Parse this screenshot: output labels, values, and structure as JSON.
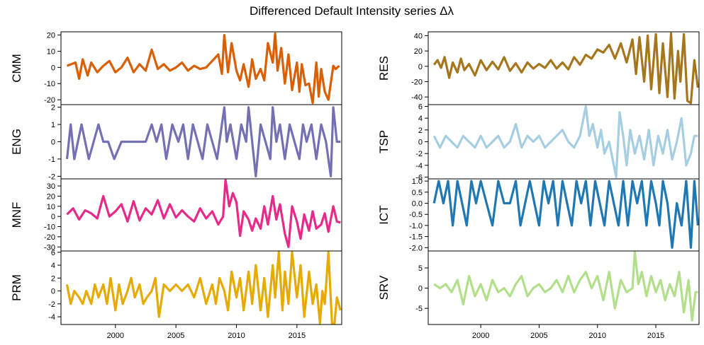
{
  "chart_data": {
    "type": "line",
    "title": "Differenced Default Intensity series Δλ",
    "x_ticks": [
      2000,
      2005,
      2010,
      2015
    ],
    "xlim": [
      1995.5,
      2018.7
    ],
    "panels": [
      {
        "name": "CMM",
        "color": "#d95f02",
        "column": "left",
        "ylim": [
          -23,
          22
        ],
        "yticks": [
          -20,
          -10,
          0,
          10,
          20
        ],
        "x": [
          1996.0,
          1996.7,
          1997.0,
          1997.3,
          1997.7,
          1998.0,
          1998.5,
          1999.0,
          1999.5,
          2000.0,
          2000.5,
          2001.0,
          2001.5,
          2002.0,
          2002.5,
          2003.0,
          2003.5,
          2004.0,
          2004.5,
          2005.0,
          2005.5,
          2006.0,
          2006.5,
          2007.0,
          2007.5,
          2008.0,
          2008.5,
          2008.8,
          2009.0,
          2009.3,
          2009.6,
          2010.0,
          2010.3,
          2010.6,
          2011.0,
          2011.3,
          2011.6,
          2012.0,
          2012.3,
          2012.6,
          2013.0,
          2013.2,
          2013.4,
          2013.7,
          2014.0,
          2014.3,
          2014.6,
          2015.0,
          2015.2,
          2015.4,
          2015.7,
          2016.0,
          2016.3,
          2016.6,
          2016.8,
          2017.0,
          2017.3,
          2017.6,
          2018.0,
          2018.2,
          2018.5
        ],
        "y": [
          1,
          3,
          -7,
          5,
          -5,
          3,
          -3,
          1,
          4,
          -3,
          0,
          6,
          -3,
          2,
          -2,
          11,
          -1,
          2,
          -2,
          0,
          3,
          -2,
          1,
          -1,
          0,
          4,
          8,
          -4,
          20,
          -3,
          15,
          -2,
          -8,
          2,
          -12,
          5,
          -7,
          -1,
          -8,
          15,
          3,
          21,
          -2,
          12,
          -10,
          8,
          -14,
          3,
          -15,
          2,
          -11,
          -10,
          -22,
          3,
          -18,
          -1,
          -15,
          -20,
          1,
          -1,
          1
        ]
      },
      {
        "name": "ENG",
        "color": "#7570b3",
        "column": "left",
        "ylim": [
          -2.15,
          2.15
        ],
        "yticks": [
          -2,
          -1,
          0,
          1,
          2
        ],
        "x": [
          1996.0,
          1996.3,
          1996.6,
          1996.9,
          1997.2,
          1997.5,
          1997.8,
          1998.2,
          1998.6,
          1999.0,
          1999.4,
          1999.9,
          2000.5,
          2001.0,
          2001.5,
          2002.0,
          2002.5,
          2003.0,
          2003.4,
          2003.8,
          2004.2,
          2004.7,
          2005.2,
          2005.6,
          2006.0,
          2006.4,
          2006.8,
          2007.2,
          2007.6,
          2008.0,
          2008.4,
          2008.8,
          2009.0,
          2009.2,
          2009.5,
          2010.0,
          2010.4,
          2010.8,
          2011.0,
          2011.3,
          2011.6,
          2012.0,
          2012.4,
          2012.8,
          2013.0,
          2013.3,
          2013.6,
          2014.0,
          2014.4,
          2014.8,
          2015.2,
          2015.5,
          2015.8,
          2016.2,
          2016.6,
          2017.0,
          2017.4,
          2017.8,
          2018.0,
          2018.3,
          2018.6
        ],
        "y": [
          -1,
          1,
          -1,
          0,
          1,
          0,
          -1,
          0,
          1,
          0,
          0,
          -1,
          0,
          0,
          0,
          0,
          0,
          1,
          0,
          1,
          -1,
          1,
          0,
          1,
          -1,
          1,
          0,
          -1,
          1,
          0,
          -1,
          1,
          2,
          0,
          1,
          -1,
          1,
          0,
          2,
          0,
          -2,
          1,
          0,
          -1,
          2,
          0,
          1,
          -1,
          1,
          0,
          -1,
          1,
          0,
          1,
          -1,
          1,
          0,
          -2,
          2,
          0,
          0
        ]
      },
      {
        "name": "MNF",
        "color": "#e7298a",
        "column": "left",
        "ylim": [
          -34,
          37
        ],
        "yticks": [
          -30,
          -20,
          -10,
          0,
          10,
          20,
          30
        ],
        "x": [
          1996.0,
          1996.5,
          1997.0,
          1997.5,
          1998.0,
          1998.5,
          1999.0,
          1999.5,
          2000.0,
          2000.5,
          2001.0,
          2001.5,
          2002.0,
          2002.5,
          2003.0,
          2003.5,
          2004.0,
          2004.5,
          2005.0,
          2005.5,
          2006.0,
          2006.5,
          2007.0,
          2007.5,
          2008.0,
          2008.5,
          2008.9,
          2009.1,
          2009.4,
          2009.7,
          2010.0,
          2010.3,
          2010.6,
          2011.0,
          2011.3,
          2011.6,
          2012.0,
          2012.3,
          2012.6,
          2013.0,
          2013.3,
          2013.6,
          2014.0,
          2014.3,
          2014.6,
          2015.0,
          2015.3,
          2015.6,
          2016.0,
          2016.3,
          2016.6,
          2017.0,
          2017.3,
          2017.6,
          2018.0,
          2018.3,
          2018.6
        ],
        "y": [
          2,
          8,
          -3,
          6,
          3,
          -2,
          20,
          0,
          5,
          12,
          -5,
          15,
          -4,
          8,
          2,
          16,
          -2,
          12,
          -1,
          6,
          0,
          -5,
          8,
          -2,
          5,
          -8,
          0,
          36,
          10,
          23,
          14,
          -19,
          5,
          -3,
          -14,
          -2,
          -12,
          10,
          -8,
          20,
          -3,
          12,
          -17,
          -30,
          10,
          -5,
          -22,
          2,
          -14,
          5,
          -12,
          -8,
          3,
          -15,
          10,
          -5,
          -6
        ]
      },
      {
        "name": "PRM",
        "color": "#e6ab02",
        "column": "left",
        "ylim": [
          -5.2,
          6.2
        ],
        "yticks": [
          -4,
          -2,
          0,
          2,
          4,
          6
        ],
        "x": [
          1996.0,
          1996.3,
          1996.6,
          1997.0,
          1997.3,
          1997.6,
          1998.0,
          1998.3,
          1998.6,
          1999.0,
          1999.3,
          1999.6,
          2000.0,
          2000.3,
          2000.6,
          2001.0,
          2001.3,
          2001.6,
          2002.0,
          2002.3,
          2002.6,
          2003.0,
          2003.3,
          2003.6,
          2004.0,
          2004.5,
          2005.0,
          2005.5,
          2006.0,
          2006.5,
          2007.0,
          2007.5,
          2008.0,
          2008.3,
          2008.6,
          2009.0,
          2009.3,
          2009.6,
          2010.0,
          2010.3,
          2010.6,
          2011.0,
          2011.3,
          2011.6,
          2012.0,
          2012.3,
          2012.6,
          2013.0,
          2013.2,
          2013.5,
          2013.8,
          2014.0,
          2014.3,
          2014.6,
          2015.0,
          2015.3,
          2015.6,
          2016.0,
          2016.3,
          2016.6,
          2016.9,
          2017.1,
          2017.3,
          2017.6,
          2017.9,
          2018.1,
          2018.3,
          2018.6
        ],
        "y": [
          1,
          -2,
          0,
          -1,
          -2,
          0,
          -2,
          1,
          -1,
          1,
          -2,
          2,
          -3,
          1,
          -2,
          0,
          2,
          -1,
          1,
          -2,
          -1,
          0,
          2,
          -4,
          1,
          0,
          1,
          0,
          1,
          -1,
          2,
          -2,
          1,
          -2,
          2,
          0,
          -3,
          3,
          -1,
          2,
          -3,
          3,
          -2,
          4,
          -3,
          2,
          -4,
          4,
          -1,
          6,
          -3,
          3,
          -2,
          6,
          -1,
          4,
          -4,
          3,
          -2,
          1,
          -5,
          0,
          -2,
          6,
          -5,
          -5,
          -1,
          -3
        ]
      },
      {
        "name": "RES",
        "color": "#a6761d",
        "column": "right",
        "ylim": [
          -50,
          45
        ],
        "yticks": [
          -40,
          -20,
          0,
          20,
          40
        ],
        "x": [
          1996.0,
          1996.3,
          1996.6,
          1996.9,
          1997.3,
          1997.6,
          1998.0,
          1998.3,
          1998.6,
          1999.0,
          1999.5,
          2000.0,
          2000.5,
          2001.0,
          2001.5,
          2002.0,
          2002.5,
          2003.0,
          2003.5,
          2004.0,
          2004.5,
          2005.0,
          2005.5,
          2006.0,
          2006.5,
          2007.0,
          2007.5,
          2008.0,
          2008.5,
          2009.0,
          2009.5,
          2010.0,
          2010.5,
          2011.0,
          2011.5,
          2012.0,
          2012.5,
          2013.0,
          2013.3,
          2013.6,
          2014.0,
          2014.3,
          2014.6,
          2015.0,
          2015.3,
          2015.6,
          2016.0,
          2016.3,
          2016.6,
          2016.9,
          2017.1,
          2017.4,
          2017.7,
          2018.0,
          2018.3,
          2018.6
        ],
        "y": [
          2,
          8,
          -2,
          12,
          -15,
          5,
          -8,
          10,
          -5,
          3,
          -12,
          8,
          -5,
          6,
          -4,
          12,
          -6,
          4,
          -8,
          5,
          -3,
          3,
          -2,
          8,
          -3,
          5,
          -4,
          12,
          2,
          15,
          10,
          22,
          18,
          28,
          10,
          30,
          5,
          35,
          -10,
          38,
          -20,
          40,
          -30,
          42,
          -35,
          30,
          -40,
          43,
          -42,
          20,
          -20,
          42,
          -45,
          -48,
          8,
          -28
        ]
      },
      {
        "name": "TSP",
        "color": "#a6cee3",
        "column": "right",
        "ylim": [
          -6.3,
          6.3
        ],
        "yticks": [
          -6,
          -4,
          -2,
          0,
          2,
          4,
          6
        ],
        "x": [
          1996.0,
          1996.5,
          1997.0,
          1997.5,
          1998.0,
          1998.5,
          1999.0,
          1999.5,
          2000.0,
          2000.5,
          2001.0,
          2001.5,
          2002.0,
          2002.5,
          2003.0,
          2003.5,
          2004.0,
          2004.5,
          2005.0,
          2005.5,
          2006.0,
          2006.5,
          2007.0,
          2007.5,
          2008.0,
          2008.5,
          2009.0,
          2009.3,
          2009.6,
          2010.0,
          2010.3,
          2010.6,
          2011.0,
          2011.3,
          2011.6,
          2011.9,
          2012.2,
          2012.5,
          2012.8,
          2013.2,
          2013.6,
          2014.0,
          2014.4,
          2014.8,
          2015.2,
          2015.6,
          2016.0,
          2016.4,
          2016.8,
          2017.2,
          2017.6,
          2018.0,
          2018.3,
          2018.6
        ],
        "y": [
          1,
          -1,
          1,
          0,
          -1,
          1,
          0,
          -1,
          1,
          -1,
          0,
          1,
          -1,
          0,
          3,
          -1,
          1,
          0,
          1,
          -1,
          0,
          1,
          2,
          0,
          -1,
          1,
          6,
          1,
          3,
          -1,
          2,
          -2,
          0,
          -3,
          -6,
          5,
          1,
          -4,
          2,
          -2,
          1,
          -3,
          2,
          -4,
          1,
          -2,
          2,
          -3,
          0,
          4,
          -4,
          -2,
          1,
          1
        ]
      },
      {
        "name": "ICT",
        "color": "#1f78b4",
        "column": "right",
        "ylim": [
          -2.15,
          1.1
        ],
        "yticks": [
          -2.0,
          -1.5,
          -1.0,
          -0.5,
          0.0,
          0.5,
          1.0
        ],
        "x": [
          1996.0,
          1996.4,
          1996.8,
          1997.2,
          1997.6,
          1998.0,
          1998.4,
          1998.8,
          1999.2,
          1999.6,
          2000.0,
          2000.5,
          2001.0,
          2001.5,
          2002.0,
          2002.5,
          2003.0,
          2003.4,
          2003.8,
          2004.2,
          2004.6,
          2005.0,
          2005.4,
          2005.8,
          2006.2,
          2006.6,
          2007.0,
          2007.4,
          2007.8,
          2008.2,
          2008.6,
          2009.0,
          2009.4,
          2009.8,
          2010.2,
          2010.6,
          2011.0,
          2011.4,
          2011.8,
          2012.2,
          2012.6,
          2013.0,
          2013.4,
          2013.8,
          2014.2,
          2014.6,
          2015.0,
          2015.3,
          2015.6,
          2016.0,
          2016.4,
          2016.8,
          2017.2,
          2017.6,
          2018.0,
          2018.3,
          2018.6
        ],
        "y": [
          0,
          1,
          0,
          1,
          -1,
          1,
          0,
          -1,
          1,
          0,
          1,
          0,
          -1,
          1,
          0,
          0,
          1,
          -1,
          0,
          1,
          0,
          -1,
          1,
          0,
          1,
          -1,
          1,
          0,
          -1,
          1,
          0,
          1,
          -1,
          1,
          0,
          -1,
          1,
          0,
          -1,
          1,
          -1,
          1,
          0,
          1,
          -1,
          1,
          0,
          -1,
          1,
          0,
          -2,
          0,
          -1,
          1,
          -2,
          1,
          -1
        ]
      },
      {
        "name": "SRV",
        "color": "#b2df8a",
        "column": "right",
        "ylim": [
          -9,
          9.2
        ],
        "yticks": [
          -5,
          0,
          5
        ],
        "x": [
          1996.0,
          1996.5,
          1997.0,
          1997.5,
          1998.0,
          1998.5,
          1999.0,
          1999.5,
          2000.0,
          2000.5,
          2001.0,
          2001.5,
          2002.0,
          2002.5,
          2003.0,
          2003.5,
          2004.0,
          2004.5,
          2005.0,
          2005.5,
          2006.0,
          2006.5,
          2007.0,
          2007.5,
          2008.0,
          2008.5,
          2009.0,
          2009.5,
          2010.0,
          2010.5,
          2011.0,
          2011.5,
          2012.0,
          2012.5,
          2013.0,
          2013.2,
          2013.5,
          2013.8,
          2014.2,
          2014.6,
          2015.0,
          2015.4,
          2015.8,
          2016.2,
          2016.6,
          2017.0,
          2017.4,
          2017.8,
          2018.1,
          2018.4,
          2018.6
        ],
        "y": [
          1,
          0,
          1,
          -1,
          2,
          -4,
          3,
          -2,
          1,
          -3,
          2,
          -1,
          0,
          -2,
          1,
          3,
          -2,
          0,
          1,
          -1,
          0,
          2,
          -1,
          3,
          -1,
          2,
          4,
          0,
          3,
          -3,
          4,
          -5,
          2,
          -1,
          0,
          9,
          1,
          4,
          -2,
          3,
          -1,
          2,
          -3,
          1,
          -2,
          4,
          -6,
          2,
          -8,
          -1,
          -1
        ]
      }
    ]
  }
}
